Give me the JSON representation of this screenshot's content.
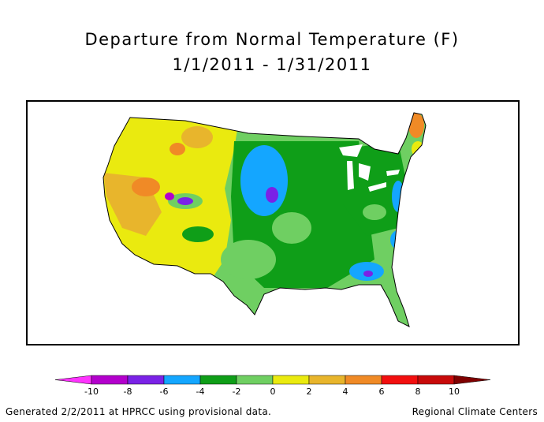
{
  "title_line1": "Departure from Normal Temperature (F)",
  "title_line2": "1/1/2011 - 1/31/2011",
  "legend": {
    "left_arrow_color": "#ff33ff",
    "right_arrow_color": "#7f0000",
    "bins": [
      {
        "color": "#b300cc"
      },
      {
        "color": "#7a22e6"
      },
      {
        "color": "#14a6ff"
      },
      {
        "color": "#0f9e18"
      },
      {
        "color": "#6fcf62"
      },
      {
        "color": "#eaea0f"
      },
      {
        "color": "#e8b52c"
      },
      {
        "color": "#f08a26"
      },
      {
        "color": "#f20f0f"
      },
      {
        "color": "#c80a0a"
      }
    ],
    "ticks": [
      "-10",
      "-8",
      "-6",
      "-4",
      "-2",
      "0",
      "2",
      "4",
      "6",
      "8",
      "10"
    ]
  },
  "footer_left": "Generated 2/2/2011 at HPRCC using provisional data.",
  "footer_right": "Regional Climate Centers"
}
